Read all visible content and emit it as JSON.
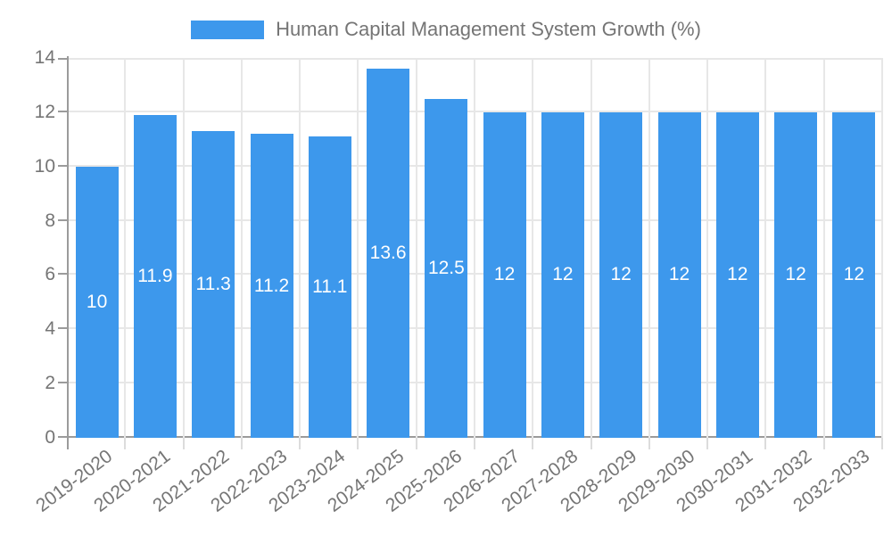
{
  "legend": {
    "label": "Human Capital Management System Growth (%)"
  },
  "chart_data": {
    "type": "bar",
    "title": "Human Capital Management System Growth (%)",
    "categories": [
      "2019-2020",
      "2020-2021",
      "2021-2022",
      "2022-2023",
      "2023-2024",
      "2024-2025",
      "2025-2026",
      "2026-2027",
      "2027-2028",
      "2028-2029",
      "2029-2030",
      "2030-2031",
      "2031-2032",
      "2032-2033"
    ],
    "values": [
      10,
      11.9,
      11.3,
      11.2,
      11.1,
      13.6,
      12.5,
      12,
      12,
      12,
      12,
      12,
      12,
      12
    ],
    "value_labels": [
      "10",
      "11.9",
      "11.3",
      "11.2",
      "11.1",
      "13.6",
      "12.5",
      "12",
      "12",
      "12",
      "12",
      "12",
      "12",
      "12"
    ],
    "xlabel": "",
    "ylabel": "",
    "ylim": [
      0,
      14
    ],
    "yticks": [
      0,
      2,
      4,
      6,
      8,
      10,
      12,
      14
    ],
    "grid": true,
    "legend_position": "top",
    "colors": {
      "bar": "#3D98EC",
      "value_label": "#FFFFFF",
      "grid_line": "#E7E7E7",
      "axis_line": "#9B9B9B",
      "x_tick_mark": "#DCDCDC",
      "tick_text": "#757575"
    }
  }
}
